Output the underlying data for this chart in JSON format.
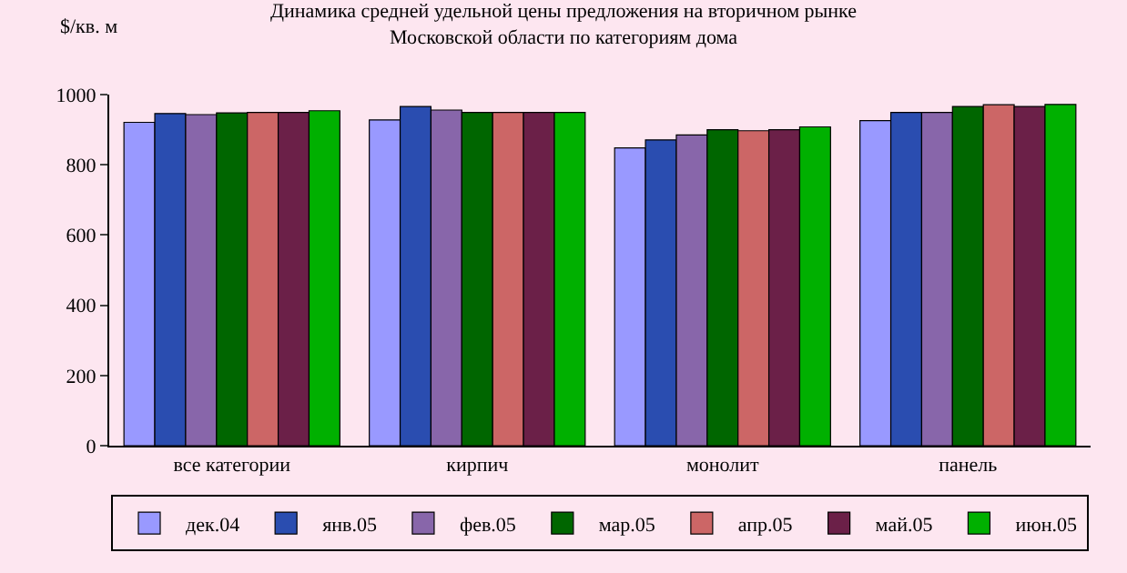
{
  "chart_data": {
    "type": "bar",
    "title": "Динамика средней удельной цены предложения на вторичном рынке\nМосковской области по категориям дома",
    "ylabel": "$/кв. м",
    "categories": [
      "все категории",
      "кирпич",
      "монолит",
      "панель"
    ],
    "series": [
      {
        "name": "дек.04",
        "color": "#9999ff",
        "values": [
          921,
          928,
          848,
          926
        ]
      },
      {
        "name": "янв.05",
        "color": "#2a4db0",
        "values": [
          946,
          966,
          871,
          949
        ]
      },
      {
        "name": "фев.05",
        "color": "#8866aa",
        "values": [
          943,
          956,
          885,
          949
        ]
      },
      {
        "name": "мар.05",
        "color": "#006600",
        "values": [
          948,
          949,
          900,
          966
        ]
      },
      {
        "name": "апр.05",
        "color": "#cc6666",
        "values": [
          949,
          949,
          897,
          971
        ]
      },
      {
        "name": "май.05",
        "color": "#6b2048",
        "values": [
          949,
          949,
          900,
          966
        ]
      },
      {
        "name": "июн.05",
        "color": "#00b000",
        "values": [
          954,
          949,
          908,
          972
        ]
      }
    ],
    "ylim": [
      0,
      1000
    ],
    "yticks": [
      0,
      200,
      400,
      600,
      800,
      1000
    ],
    "grid": false,
    "legend": "bottom"
  }
}
